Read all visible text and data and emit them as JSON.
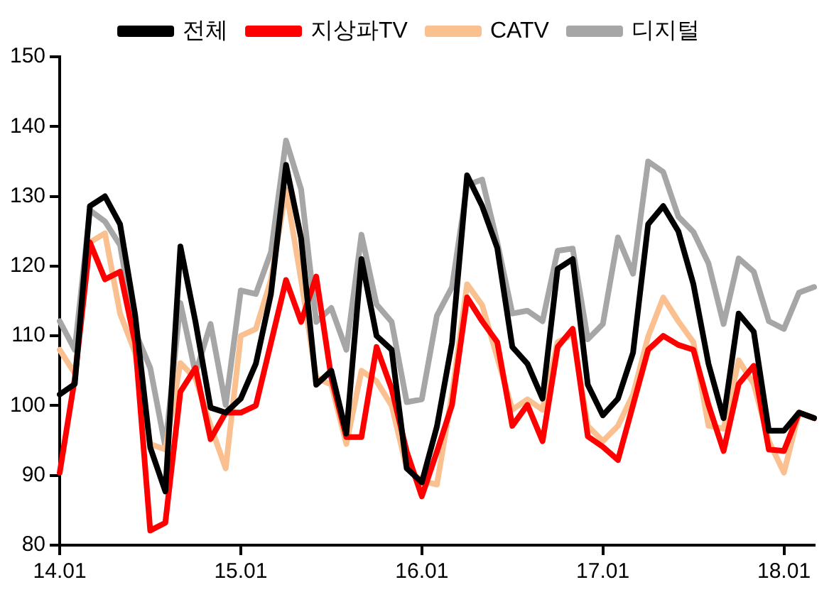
{
  "chart_data": {
    "type": "line",
    "categories": [
      "14.01",
      null,
      null,
      null,
      null,
      null,
      null,
      null,
      null,
      null,
      null,
      null,
      "15.01",
      null,
      null,
      null,
      null,
      null,
      null,
      null,
      null,
      null,
      null,
      null,
      "16.01",
      null,
      null,
      null,
      null,
      null,
      null,
      null,
      null,
      null,
      null,
      null,
      "17.01",
      null,
      null,
      null,
      null,
      null,
      null,
      null,
      null,
      null,
      null,
      null,
      "18.01",
      null,
      null
    ],
    "series": [
      {
        "name": "전체",
        "color": "#000000",
        "values": [
          101.6,
          103.1,
          128.6,
          130,
          126,
          113,
          94,
          87.7,
          122.8,
          112,
          99.7,
          99,
          101,
          106,
          116,
          134.5,
          124,
          103,
          105,
          96,
          121,
          110,
          108,
          91,
          89,
          97,
          109,
          133,
          128.6,
          122.6,
          108.4,
          106,
          101,
          119.6,
          121,
          103,
          98.6,
          101,
          107.6,
          126,
          128.6,
          125,
          117.4,
          106,
          98.2,
          113.2,
          110.6,
          96.4,
          96.4,
          99,
          98.2
        ]
      },
      {
        "name": "지상파TV",
        "color": "#ff0000",
        "values": [
          90.4,
          103.9,
          123.4,
          118.1,
          119.2,
          109,
          82.1,
          83.2,
          102,
          105.4,
          95.2,
          99,
          99,
          100,
          109,
          118,
          112,
          118.5,
          104,
          95.5,
          95.5,
          108.4,
          102.4,
          93.4,
          87,
          93.4,
          100.1,
          115.5,
          112.1,
          109.1,
          97.1,
          100.1,
          94.9,
          108.4,
          111,
          95.6,
          94.1,
          92.2,
          100.1,
          108,
          110,
          108.7,
          108,
          100.1,
          93.5,
          103.1,
          105.7,
          93.7,
          93.5,
          99,
          98.2
        ]
      },
      {
        "name": "CATV",
        "color": "#fac090",
        "values": [
          108,
          104.6,
          123.4,
          124.7,
          113.2,
          107.6,
          94.5,
          93.7,
          106.1,
          103.9,
          97.1,
          91,
          110,
          111,
          118,
          131,
          118,
          104,
          103,
          94.5,
          105,
          103.5,
          100,
          91,
          89.2,
          88.7,
          101.6,
          117.4,
          114.4,
          106.9,
          99.4,
          100.9,
          99.4,
          109.1,
          110.2,
          97.1,
          94.9,
          97.1,
          101.6,
          109.9,
          115.5,
          112.1,
          109.1,
          97.1,
          96.7,
          106.5,
          103.1,
          94.9,
          90.4,
          99,
          98.2
        ]
      },
      {
        "name": "디지털",
        "color": "#a6a6a6",
        "values": [
          112.1,
          108,
          128,
          126.4,
          123,
          110.6,
          105.4,
          94.1,
          114.7,
          104.6,
          111.7,
          100.1,
          116.5,
          116,
          122,
          138,
          131,
          112,
          114,
          108,
          124.5,
          114.5,
          112,
          100.5,
          100.9,
          112.9,
          117,
          131.6,
          132.4,
          123.4,
          113.2,
          113.6,
          112.1,
          122.2,
          122.5,
          109.5,
          111.7,
          124.1,
          118.9,
          135,
          133.5,
          127.1,
          124.9,
          120.4,
          111.7,
          121.1,
          119.2,
          112.1,
          111,
          116.2,
          117
        ]
      }
    ],
    "ylim": [
      80,
      150
    ],
    "yticks": [
      80,
      90,
      100,
      110,
      120,
      130,
      140,
      150
    ],
    "legend": "top",
    "marker": "none",
    "line_style": "solid",
    "grid": false
  }
}
